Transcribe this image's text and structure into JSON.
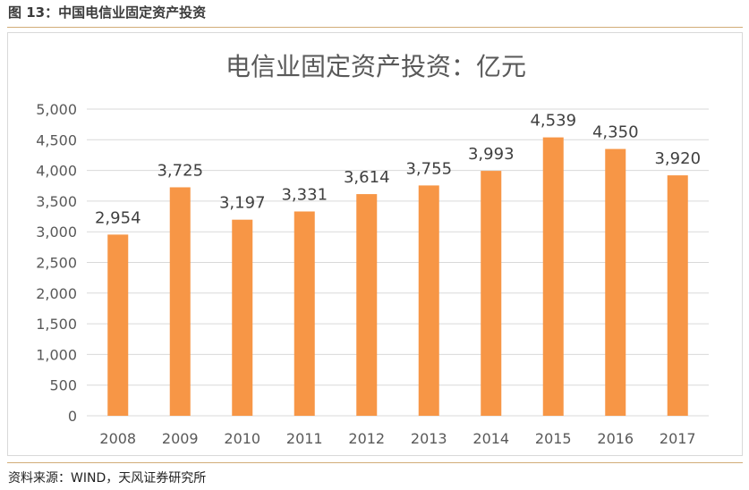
{
  "figure": {
    "caption": "图 13：中国电信业固定资产投资",
    "source": "资料来源：WIND，天风证券研究所"
  },
  "colors": {
    "bar": "#f79646",
    "grid": "#d9d9d9",
    "text": "#595959",
    "rule": "#d1ad78"
  },
  "chart_data": {
    "type": "bar",
    "title": "电信业固定资产投资：亿元",
    "categories": [
      "2008",
      "2009",
      "2010",
      "2011",
      "2012",
      "2013",
      "2014",
      "2015",
      "2016",
      "2017"
    ],
    "values": [
      2954,
      3725,
      3197,
      3331,
      3614,
      3755,
      3993,
      4539,
      4350,
      3920
    ],
    "data_labels": [
      "2,954",
      "3,725",
      "3,197",
      "3,331",
      "3,614",
      "3,755",
      "3,993",
      "4,539",
      "4,350",
      "3,920"
    ],
    "ylim": [
      0,
      5000
    ],
    "yticks": [
      0,
      500,
      1000,
      1500,
      2000,
      2500,
      3000,
      3500,
      4000,
      4500,
      5000
    ],
    "ytick_labels": [
      "0",
      "500",
      "1,000",
      "1,500",
      "2,000",
      "2,500",
      "3,000",
      "3,500",
      "4,000",
      "4,500",
      "5,000"
    ],
    "grid": true,
    "legend": "none"
  }
}
